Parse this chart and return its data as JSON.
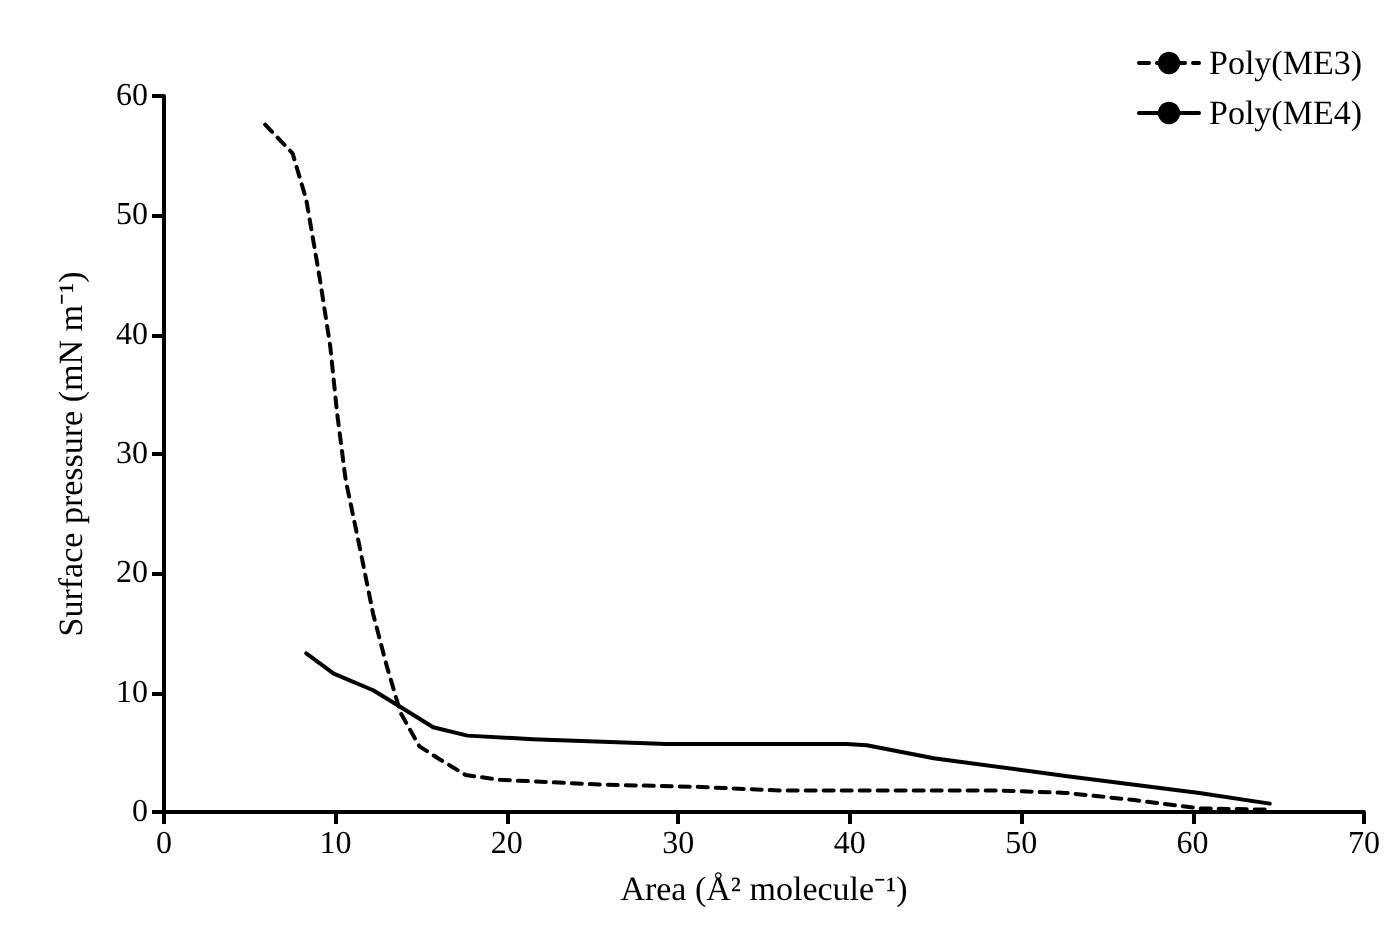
{
  "chart_data": {
    "type": "line",
    "xlabel": "Area (Å² molecule⁻¹)",
    "ylabel": "Surface pressure (mN m⁻¹)",
    "xlim": [
      0,
      70
    ],
    "xticks": [
      0,
      10,
      20,
      30,
      40,
      50,
      60,
      70
    ],
    "ylim": [
      0,
      60
    ],
    "yticks": [
      0,
      10,
      20,
      30,
      40,
      50,
      60
    ],
    "grid": false,
    "legend": "top right",
    "marker": "none",
    "series": [
      {
        "name": "Poly(ME3)",
        "color": "#000000",
        "line_style": "dashed",
        "x": [
          5.9,
          7.5,
          8.3,
          9.1,
          9.7,
          10.1,
          10.6,
          11.4,
          12.2,
          13.0,
          13.8,
          14.9,
          16.1,
          17.6,
          19.6,
          25.4,
          31.3,
          35.9,
          41.0,
          48.8,
          52.6,
          56.6,
          60.4,
          64.3
        ],
        "values": [
          57.6,
          55.2,
          51.3,
          44.6,
          39.0,
          33.4,
          27.8,
          22.3,
          16.6,
          12.2,
          8.3,
          5.5,
          4.4,
          3.1,
          2.7,
          2.3,
          2.1,
          1.8,
          1.8,
          1.8,
          1.6,
          1.0,
          0.3,
          0.2
        ]
      },
      {
        "name": "Poly(ME4)",
        "color": "#000000",
        "line_style": "solid",
        "x": [
          8.3,
          9.9,
          12.2,
          13.8,
          15.7,
          17.7,
          21.5,
          29.3,
          39.8,
          41.0,
          44.9,
          52.7,
          60.4,
          64.5
        ],
        "values": [
          13.3,
          11.6,
          10.2,
          8.8,
          7.1,
          6.4,
          6.1,
          5.7,
          5.7,
          5.6,
          4.5,
          3.0,
          1.6,
          0.7
        ]
      }
    ]
  }
}
